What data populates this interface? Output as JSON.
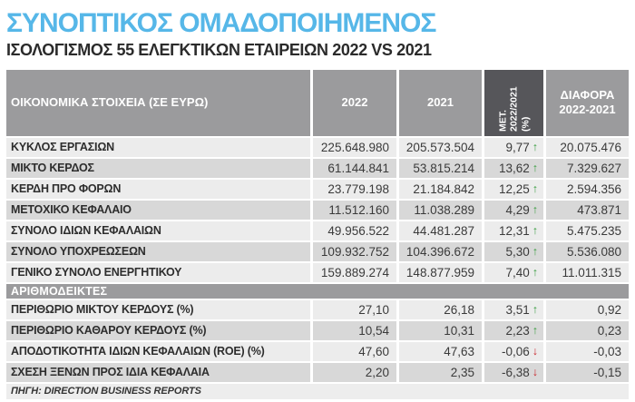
{
  "header": {
    "title": "ΣΥΝΟΠΤΙΚΟΣ ΟΜΑΔΟΠΟΙΗΜΕΝΟΣ",
    "subtitle": "ΙΣΟΛΟΓΙΣΜΟΣ 55 ΕΛΕΓΚΤΙΚΩΝ ΕΤΑΙΡΕΙΩΝ 2022 VS 2021"
  },
  "colors": {
    "title_blue": "#56b7e8",
    "header_gray": "#9b9b9d",
    "header_dark_gray": "#56565a",
    "row_light": "#ececec",
    "row_dark": "#d8d8d8",
    "up_green": "#3b9e42",
    "down_red": "#c9252b"
  },
  "table": {
    "columns": {
      "label": "ΟΙΚΟΝΟΜΙΚΑ ΣΤΟΙΧΕΙΑ (ΣΕ ΕΥΡΩ)",
      "y2022": "2022",
      "y2021": "2021",
      "change": "ΜΕΤ.\n2022/2021\n(%)",
      "diff": "ΔΙΑΦΟΡΑ\n2022-2021"
    },
    "rows": [
      {
        "label": "ΚΥΚΛΟΣ ΕΡΓΑΣΙΩΝ",
        "y2022": "225.648.980",
        "y2021": "205.573.504",
        "change": "9,77",
        "arrow": "↑",
        "diff": "20.075.476"
      },
      {
        "label": "ΜΙΚΤΟ ΚΕΡΔΟΣ",
        "y2022": "61.144.841",
        "y2021": "53.815.214",
        "change": "13,62",
        "arrow": "↑",
        "diff": "7.329.627"
      },
      {
        "label": "ΚΕΡΔΗ ΠΡΟ ΦΟΡΩΝ",
        "y2022": "23.779.198",
        "y2021": "21.184.842",
        "change": "12,25",
        "arrow": "↑",
        "diff": "2.594.356"
      },
      {
        "label": "ΜΕΤΟΧΙΚΟ ΚΕΦΑΛΑΙΟ",
        "y2022": "11.512.160",
        "y2021": "11.038.289",
        "change": "4,29",
        "arrow": "↑",
        "diff": "473.871"
      },
      {
        "label": "ΣΥΝΟΛΟ ΙΔΙΩΝ ΚΕΦΑΛΑΙΩΝ",
        "y2022": "49.956.522",
        "y2021": "44.481.287",
        "change": "12,31",
        "arrow": "↑",
        "diff": "5.475.235"
      },
      {
        "label": "ΣΥΝΟΛΟ ΥΠΟΧΡΕΩΣΕΩΝ",
        "y2022": "109.932.752",
        "y2021": "104.396.672",
        "change": "5,30",
        "arrow": "↑",
        "diff": "5.536.080"
      },
      {
        "label": "ΓΕΝΙΚΟ ΣΥΝΟΛΟ ΕΝΕΡΓΗΤΙΚΟΥ",
        "y2022": "159.889.274",
        "y2021": "148.877.959",
        "change": "7,40",
        "arrow": "↑",
        "diff": "11.011.315"
      }
    ],
    "section": "ΑΡΙΘΜΟΔΕΙΚΤΕΣ",
    "ratios": [
      {
        "label": "ΠΕΡΙΘΩΡΙΟ ΜΙΚΤΟΥ ΚΕΡΔΟΥΣ (%)",
        "y2022": "27,10",
        "y2021": "26,18",
        "change": "3,51",
        "arrow": "↑",
        "diff": "0,92"
      },
      {
        "label": "ΠΕΡΙΘΩΡΙΟ ΚΑΘΑΡΟΥ ΚΕΡΔΟΥΣ (%)",
        "y2022": "10,54",
        "y2021": "10,31",
        "change": "2,23",
        "arrow": "↑",
        "diff": "0,23"
      },
      {
        "label": "ΑΠΟΔΟΤΙΚΟΤΗΤΑ ΙΔΙΩΝ ΚΕΦΑΛΑΙΩΝ (ROE) (%)",
        "y2022": "47,60",
        "y2021": "47,63",
        "change": "-0,06",
        "arrow": "↓",
        "diff": "-0,03"
      },
      {
        "label": "ΣΧΕΣΗ ΞΕΝΩΝ ΠΡΟΣ ΙΔΙΑ ΚΕΦΑΛΑΙΑ",
        "y2022": "2,20",
        "y2021": "2,35",
        "change": "-6,38",
        "arrow": "↓",
        "diff": "-0,15"
      }
    ]
  },
  "footer": {
    "source": "ΠΗΓΗ: DIRECTION BUSINESS REPORTS"
  },
  "chart_data": {
    "type": "table",
    "title": "ΣΥΝΟΠΤΙΚΟΣ ΟΜΑΔΟΠΟΙΗΜΕΝΟΣ ΙΣΟΛΟΓΙΣΜΟΣ 55 ΕΛΕΓΚΤΙΚΩΝ ΕΤΑΙΡΕΙΩΝ 2022 VS 2021",
    "columns": [
      "ΟΙΚΟΝΟΜΙΚΑ ΣΤΟΙΧΕΙΑ (ΣΕ ΕΥΡΩ)",
      "2022",
      "2021",
      "ΜΕΤ. 2022/2021 (%)",
      "ΔΙΑΦΟΡΑ 2022-2021"
    ],
    "rows": [
      [
        "ΚΥΚΛΟΣ ΕΡΓΑΣΙΩΝ",
        225648980,
        205573504,
        9.77,
        20075476
      ],
      [
        "ΜΙΚΤΟ ΚΕΡΔΟΣ",
        61144841,
        53815214,
        13.62,
        7329627
      ],
      [
        "ΚΕΡΔΗ ΠΡΟ ΦΟΡΩΝ",
        23779198,
        21184842,
        12.25,
        2594356
      ],
      [
        "ΜΕΤΟΧΙΚΟ ΚΕΦΑΛΑΙΟ",
        11512160,
        11038289,
        4.29,
        473871
      ],
      [
        "ΣΥΝΟΛΟ ΙΔΙΩΝ ΚΕΦΑΛΑΙΩΝ",
        49956522,
        44481287,
        12.31,
        5475235
      ],
      [
        "ΣΥΝΟΛΟ ΥΠΟΧΡΕΩΣΕΩΝ",
        109932752,
        104396672,
        5.3,
        5536080
      ],
      [
        "ΓΕΝΙΚΟ ΣΥΝΟΛΟ ΕΝΕΡΓΗΤΙΚΟΥ",
        159889274,
        148877959,
        7.4,
        11011315
      ],
      [
        "ΠΕΡΙΘΩΡΙΟ ΜΙΚΤΟΥ ΚΕΡΔΟΥΣ (%)",
        27.1,
        26.18,
        3.51,
        0.92
      ],
      [
        "ΠΕΡΙΘΩΡΙΟ ΚΑΘΑΡΟΥ ΚΕΡΔΟΥΣ (%)",
        10.54,
        10.31,
        2.23,
        0.23
      ],
      [
        "ΑΠΟΔΟΤΙΚΟΤΗΤΑ ΙΔΙΩΝ ΚΕΦΑΛΑΙΩΝ (ROE) (%)",
        47.6,
        47.63,
        -0.06,
        -0.03
      ],
      [
        "ΣΧΕΣΗ ΞΕΝΩΝ ΠΡΟΣ ΙΔΙΑ ΚΕΦΑΛΑΙΑ",
        2.2,
        2.35,
        -6.38,
        -0.15
      ]
    ],
    "section_label": "ΑΡΙΘΜΟΔΕΙΚΤΕΣ",
    "section_break_after_row": 6,
    "source": "ΠΗΓΗ: DIRECTION BUSINESS REPORTS"
  }
}
